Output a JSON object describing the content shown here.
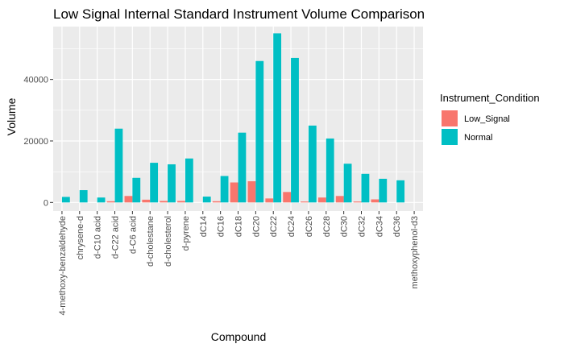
{
  "chart_data": {
    "type": "bar",
    "title": "Low Signal Internal Standard Instrument Volume Comparison",
    "xlabel": "Compound",
    "ylabel": "Volume",
    "ylim": [
      -2800,
      57200
    ],
    "yticks": [
      0,
      20000,
      40000
    ],
    "ytick_labels": [
      "0",
      "20000",
      "40000"
    ],
    "categories": [
      "4-methoxy-benzaldehyde",
      "chrysene-d",
      "d-C10 acid",
      "d-C22 acid",
      "d-C6 acid",
      "d-cholestane",
      "d-cholesterol",
      "d-pyrene",
      "dC14",
      "dC16",
      "dC18",
      "dC20",
      "dC22",
      "dC24",
      "dC26",
      "dC28",
      "dC30",
      "dC32",
      "dC34",
      "dC36",
      "methoxyphenol-d3"
    ],
    "series": [
      {
        "name": "Low_Signal",
        "color": "#F8766D",
        "values": [
          0,
          0,
          0,
          400,
          2100,
          900,
          500,
          500,
          0,
          400,
          6500,
          6900,
          1300,
          3400,
          300,
          1600,
          2100,
          300,
          1000,
          0,
          0
        ]
      },
      {
        "name": "Normal",
        "color": "#00BFC4",
        "values": [
          1800,
          4000,
          1600,
          24000,
          8000,
          12900,
          12400,
          14300,
          1900,
          8600,
          22700,
          46000,
          55000,
          47000,
          25000,
          20800,
          12600,
          9300,
          7700,
          7200,
          0
        ]
      }
    ],
    "legend_title": "Instrument_Condition",
    "legend_position": "right",
    "grid": true,
    "panel_background": "#EBEBEB",
    "grid_color": "#FFFFFF"
  }
}
